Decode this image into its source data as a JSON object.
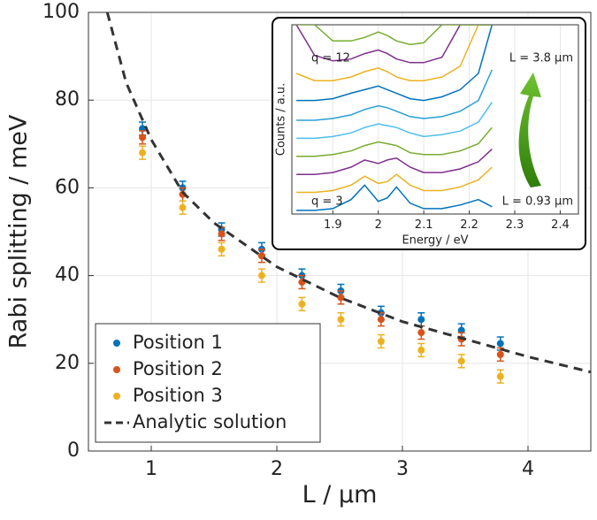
{
  "chart_data": [
    {
      "type": "scatter",
      "xlabel": "L / μm",
      "ylabel": "Rabi splitting / meV",
      "xlim": [
        0.5,
        4.5
      ],
      "ylim": [
        0,
        100
      ],
      "xticks": [
        1,
        2,
        3,
        4
      ],
      "yticks": [
        0,
        20,
        40,
        60,
        80,
        100
      ],
      "grid": true,
      "legend": "lower left",
      "x": [
        0.93,
        1.25,
        1.56,
        1.88,
        2.2,
        2.51,
        2.83,
        3.15,
        3.47,
        3.78
      ],
      "series": [
        {
          "name": "Position 1",
          "color": "#0072bd",
          "values": [
            73.5,
            60,
            50.5,
            46,
            40,
            36.5,
            31.5,
            30,
            27.5,
            24.5
          ],
          "errors": [
            1.5,
            1.5,
            1.5,
            1.5,
            1.5,
            1.5,
            1.5,
            1.5,
            1.5,
            1.5
          ]
        },
        {
          "name": "Position 2",
          "color": "#d95319",
          "values": [
            71.5,
            58.5,
            49.5,
            44.5,
            38.5,
            35,
            30,
            27,
            25.5,
            22
          ],
          "errors": [
            1.5,
            1.5,
            1.5,
            1.5,
            1.5,
            1.5,
            1.5,
            1.5,
            1.5,
            1.5
          ]
        },
        {
          "name": "Position 3",
          "color": "#edb120",
          "values": [
            68,
            55.5,
            46,
            40,
            33.5,
            30,
            25,
            23,
            20.5,
            17
          ],
          "errors": [
            1.5,
            1.5,
            1.5,
            1.5,
            1.5,
            1.5,
            1.5,
            1.5,
            1.5,
            1.5
          ]
        },
        {
          "name": "Analytic solution",
          "color": "#333333",
          "style": "dashed",
          "x": [
            0.65,
            0.8,
            1,
            1.25,
            1.5,
            2,
            2.5,
            3,
            3.5,
            4,
            4.5
          ],
          "values": [
            100,
            84,
            71,
            59,
            52,
            42,
            35,
            29.5,
            25.5,
            21.5,
            18
          ]
        }
      ]
    },
    {
      "type": "line",
      "xlabel": "Energy / eV",
      "ylabel": "Counts / a.u.",
      "xlim": [
        1.81,
        2.44
      ],
      "ylim": [
        0,
        10.5
      ],
      "xticks": [
        1.9,
        2,
        2.1,
        2.2,
        2.3,
        2.4
      ],
      "grid": true,
      "annotations": [
        "q = 12",
        "L = 3.8 μm",
        "q = 3",
        "L = 0.93 μm"
      ],
      "x": [
        1.82,
        1.86,
        1.9,
        1.94,
        1.97,
        2.0,
        2.02,
        2.04,
        2.07,
        2.1,
        2.14,
        2.18,
        2.22,
        2.25
      ],
      "series": [
        {
          "color": "#0072bd",
          "values": [
            0.2,
            0.2,
            0.3,
            0.8,
            1.6,
            0.7,
            0.9,
            1.5,
            0.6,
            0.3,
            0.3,
            0.5,
            0.8,
            0.4
          ]
        },
        {
          "color": "#edb120",
          "values": [
            1.2,
            1.2,
            1.3,
            1.6,
            2.1,
            1.7,
            1.8,
            2.2,
            1.6,
            1.3,
            1.3,
            1.5,
            1.9,
            2.6
          ]
        },
        {
          "color": "#7e2f8e",
          "values": [
            2.2,
            2.2,
            2.3,
            2.6,
            3.0,
            2.8,
            3.0,
            3.1,
            2.6,
            2.3,
            2.3,
            2.5,
            2.9,
            3.6
          ]
        },
        {
          "color": "#77ac30",
          "values": [
            3.2,
            3.2,
            3.3,
            3.5,
            3.8,
            4.0,
            3.9,
            3.8,
            3.4,
            3.3,
            3.3,
            3.5,
            3.9,
            4.8
          ]
        },
        {
          "color": "#4dbeee",
          "values": [
            4.2,
            4.2,
            4.3,
            4.5,
            4.8,
            5.0,
            4.9,
            4.8,
            4.5,
            4.3,
            4.4,
            4.6,
            5.1,
            6.2
          ]
        },
        {
          "color": "#2a9fd6",
          "values": [
            5.2,
            5.2,
            5.3,
            5.5,
            5.8,
            6.0,
            5.9,
            5.7,
            5.4,
            5.3,
            5.4,
            5.7,
            6.3,
            8.0
          ]
        },
        {
          "color": "#0072bd",
          "values": [
            6.3,
            6.3,
            6.4,
            6.7,
            6.9,
            7.1,
            6.9,
            6.7,
            6.4,
            6.3,
            6.5,
            6.9,
            7.8,
            10.5
          ]
        },
        {
          "color": "#edb120",
          "values": [
            7.8,
            7.4,
            7.4,
            7.6,
            7.9,
            8.1,
            7.9,
            7.6,
            7.4,
            7.4,
            7.6,
            8.2,
            10.5,
            10.5
          ]
        },
        {
          "color": "#7e2f8e",
          "values": [
            10.5,
            8.8,
            8.5,
            8.6,
            8.9,
            9.1,
            8.9,
            8.6,
            8.4,
            8.4,
            8.7,
            10.5,
            10.5,
            10.5
          ]
        },
        {
          "color": "#77ac30",
          "values": [
            10.5,
            10.5,
            9.6,
            9.6,
            9.8,
            10.1,
            9.9,
            9.6,
            9.4,
            9.5,
            10.5,
            10.5,
            10.5,
            10.5
          ]
        }
      ]
    }
  ]
}
